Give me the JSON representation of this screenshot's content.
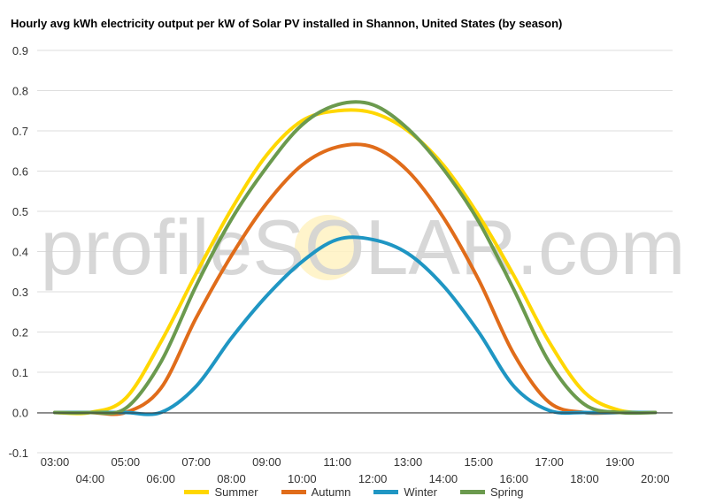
{
  "watermark": "profileSOLAR.com",
  "chart_data": {
    "type": "line",
    "title": "Hourly avg kWh electricity output per kW of Solar PV installed in Shannon, United States (by season)",
    "xlabel": "",
    "ylabel": "",
    "ylim": [
      -0.1,
      0.9
    ],
    "yticks": [
      "-0.1",
      "0.0",
      "0.1",
      "0.2",
      "0.3",
      "0.4",
      "0.5",
      "0.6",
      "0.7",
      "0.8",
      "0.9"
    ],
    "grid": true,
    "legend": "bottom",
    "x": [
      "03:00",
      "04:00",
      "05:00",
      "06:00",
      "07:00",
      "08:00",
      "09:00",
      "10:00",
      "11:00",
      "12:00",
      "13:00",
      "14:00",
      "15:00",
      "16:00",
      "17:00",
      "18:00",
      "19:00",
      "20:00"
    ],
    "series": [
      {
        "name": "Summer",
        "color": "#ffd700",
        "values": [
          0.0,
          0.0,
          0.035,
          0.175,
          0.345,
          0.505,
          0.64,
          0.725,
          0.75,
          0.745,
          0.7,
          0.615,
          0.49,
          0.34,
          0.175,
          0.05,
          0.005,
          0.0
        ]
      },
      {
        "name": "Autumn",
        "color": "#e06c1a",
        "values": [
          0.0,
          0.0,
          0.0,
          0.06,
          0.235,
          0.39,
          0.52,
          0.615,
          0.66,
          0.66,
          0.6,
          0.485,
          0.33,
          0.145,
          0.025,
          0.0,
          0.0,
          0.0
        ]
      },
      {
        "name": "Winter",
        "color": "#1f96c3",
        "values": [
          0.0,
          0.0,
          0.0,
          0.0,
          0.065,
          0.185,
          0.29,
          0.375,
          0.43,
          0.43,
          0.395,
          0.315,
          0.2,
          0.065,
          0.005,
          0.0,
          0.0,
          0.0
        ]
      },
      {
        "name": "Spring",
        "color": "#6b9a4e",
        "values": [
          0.0,
          0.0,
          0.01,
          0.125,
          0.315,
          0.48,
          0.61,
          0.715,
          0.765,
          0.765,
          0.705,
          0.605,
          0.475,
          0.305,
          0.125,
          0.02,
          0.0,
          0.0
        ]
      }
    ]
  }
}
